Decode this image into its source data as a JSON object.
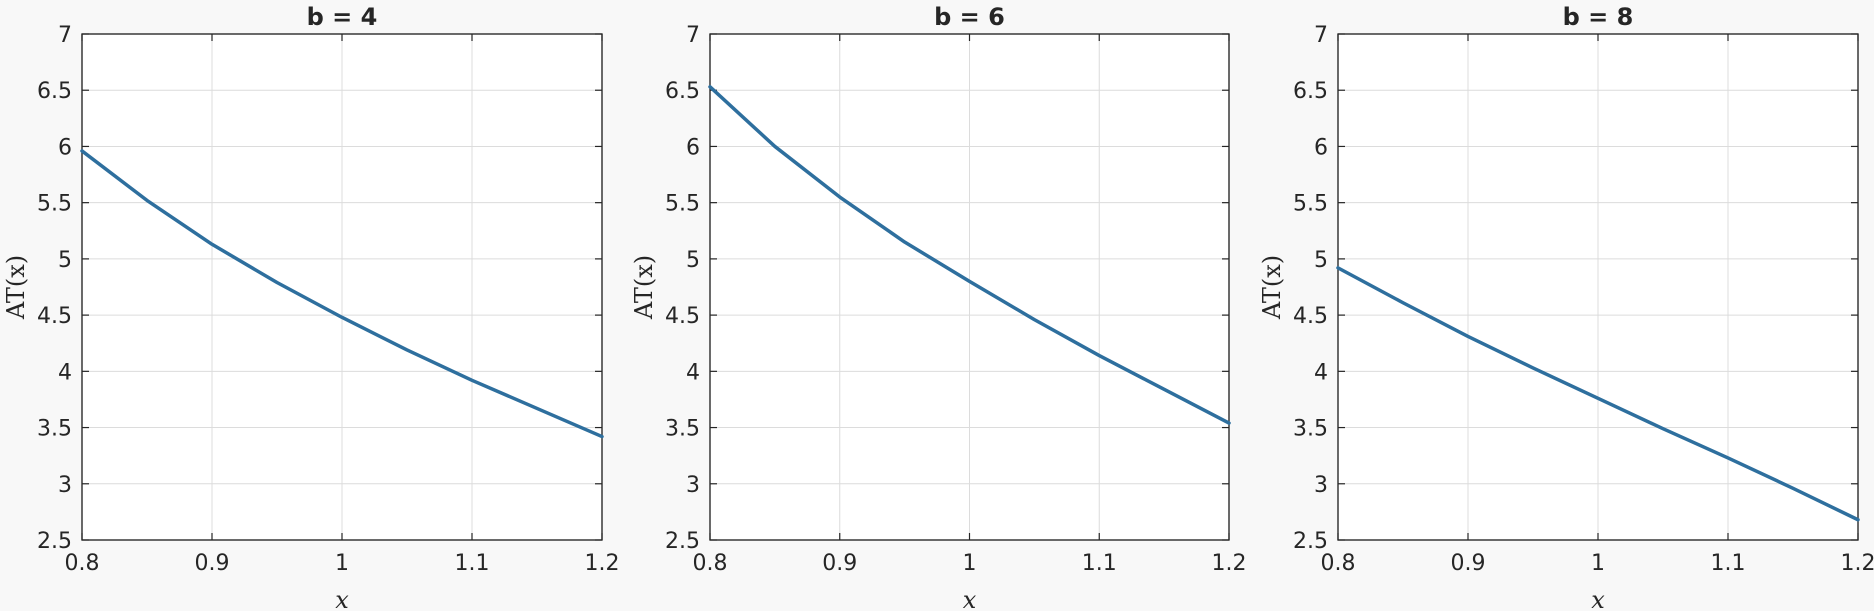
{
  "chart_data": [
    {
      "type": "line",
      "title": "b = 4",
      "xlabel": "x",
      "ylabel": "AT(x)",
      "xlim": [
        0.8,
        1.2
      ],
      "ylim": [
        2.5,
        7
      ],
      "xticks": [
        "0.8",
        "0.9",
        "1",
        "1.1",
        "1.2"
      ],
      "yticks": [
        "2.5",
        "3",
        "3.5",
        "4",
        "4.5",
        "5",
        "5.5",
        "6",
        "6.5",
        "7"
      ],
      "grid": true,
      "color": "#2e6f9e",
      "series": [
        {
          "x": [
            0.8,
            0.85,
            0.9,
            0.95,
            1.0,
            1.05,
            1.1,
            1.15,
            1.2
          ],
          "y": [
            5.96,
            5.52,
            5.13,
            4.79,
            4.48,
            4.19,
            3.92,
            3.67,
            3.42
          ]
        }
      ]
    },
    {
      "type": "line",
      "title": "b = 6",
      "xlabel": "x",
      "ylabel": "AT(x)",
      "xlim": [
        0.8,
        1.2
      ],
      "ylim": [
        2.5,
        7
      ],
      "xticks": [
        "0.8",
        "0.9",
        "1",
        "1.1",
        "1.2"
      ],
      "yticks": [
        "2.5",
        "3",
        "3.5",
        "4",
        "4.5",
        "5",
        "5.5",
        "6",
        "6.5",
        "7"
      ],
      "grid": true,
      "color": "#2e6f9e",
      "series": [
        {
          "x": [
            0.8,
            0.85,
            0.9,
            0.95,
            1.0,
            1.05,
            1.1,
            1.15,
            1.2
          ],
          "y": [
            6.53,
            6.0,
            5.55,
            5.15,
            4.8,
            4.46,
            4.14,
            3.84,
            3.54
          ]
        }
      ]
    },
    {
      "type": "line",
      "title": "b = 8",
      "xlabel": "x",
      "ylabel": "AT(x)",
      "xlim": [
        0.8,
        1.2
      ],
      "ylim": [
        2.5,
        7
      ],
      "xticks": [
        "0.8",
        "0.9",
        "1",
        "1.1",
        "1.2"
      ],
      "yticks": [
        "2.5",
        "3",
        "3.5",
        "4",
        "4.5",
        "5",
        "5.5",
        "6",
        "6.5",
        "7"
      ],
      "grid": true,
      "color": "#2e6f9e",
      "series": [
        {
          "x": [
            0.8,
            0.85,
            0.9,
            0.95,
            1.0,
            1.05,
            1.1,
            1.15,
            1.2
          ],
          "y": [
            4.92,
            4.61,
            4.31,
            4.03,
            3.76,
            3.49,
            3.23,
            2.96,
            2.68
          ]
        }
      ]
    }
  ]
}
